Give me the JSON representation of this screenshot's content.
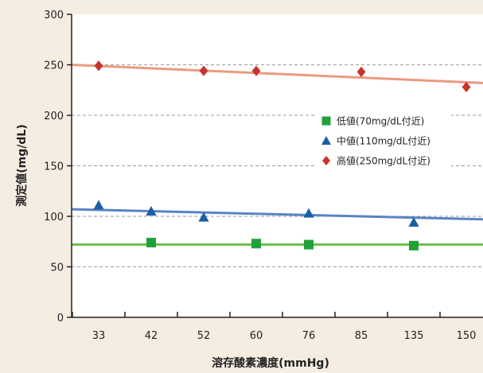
{
  "chart_data": {
    "type": "scatter",
    "title": "",
    "xlabel": "溶存酸素濃度(mmHg)",
    "ylabel": "測定値(mg/dL)",
    "categories": [
      "33",
      "42",
      "52",
      "60",
      "76",
      "85",
      "135",
      "150"
    ],
    "ylim": [
      0,
      300
    ],
    "yticks": [
      0,
      50,
      100,
      150,
      200,
      250,
      300
    ],
    "grid": true,
    "legend_position": "right-middle",
    "series": [
      {
        "name": "低値(70mg/dL付近)",
        "marker": "square",
        "color": "#21a03a",
        "line_color": "#6fbf4f",
        "points": [
          {
            "x": "42",
            "y": 74
          },
          {
            "x": "60",
            "y": 73
          },
          {
            "x": "76",
            "y": 72
          },
          {
            "x": "135",
            "y": 71
          }
        ],
        "trend": [
          72,
          72
        ]
      },
      {
        "name": "中値(110mg/dL付近)",
        "marker": "triangle",
        "color": "#1a5fa8",
        "line_color": "#5b82c4",
        "points": [
          {
            "x": "33",
            "y": 111
          },
          {
            "x": "42",
            "y": 105
          },
          {
            "x": "52",
            "y": 99
          },
          {
            "x": "76",
            "y": 103
          },
          {
            "x": "135",
            "y": 94
          }
        ],
        "trend": [
          107,
          97
        ]
      },
      {
        "name": "高値(250mg/dL付近)",
        "marker": "diamond",
        "color": "#c8332b",
        "line_color": "#eb9a80",
        "points": [
          {
            "x": "33",
            "y": 249
          },
          {
            "x": "52",
            "y": 244
          },
          {
            "x": "60",
            "y": 244
          },
          {
            "x": "85",
            "y": 243
          },
          {
            "x": "150",
            "y": 228
          }
        ],
        "trend": [
          250,
          232
        ]
      }
    ]
  }
}
